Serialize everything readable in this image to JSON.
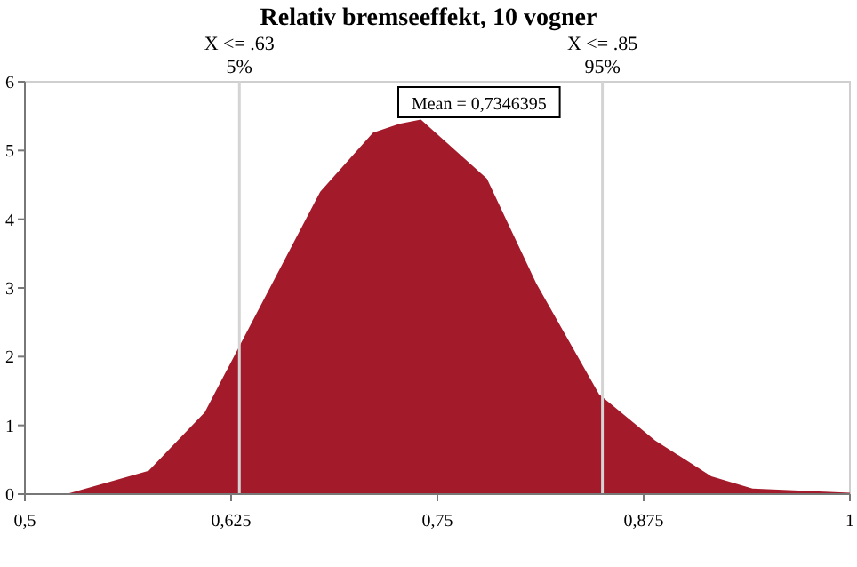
{
  "chart_data": {
    "type": "area",
    "title": "Relativ bremseeffekt, 10 vogner",
    "x": [
      0.5,
      0.525,
      0.575,
      0.609,
      0.626,
      0.679,
      0.711,
      0.727,
      0.74,
      0.78,
      0.81,
      0.848,
      0.882,
      0.916,
      0.941,
      1.0
    ],
    "series": [
      {
        "color": "#a31b2b",
        "values": [
          0,
          0,
          0.34,
          1.19,
          1.97,
          4.4,
          5.26,
          5.39,
          5.45,
          4.59,
          3.06,
          1.45,
          0.78,
          0.26,
          0.08,
          0.02
        ]
      }
    ],
    "xlim": [
      0.5,
      1
    ],
    "ylim": [
      0,
      6
    ],
    "xticks": [
      {
        "value": 0.5,
        "label": "0,5"
      },
      {
        "value": 0.625,
        "label": "0,625"
      },
      {
        "value": 0.75,
        "label": "0,75"
      },
      {
        "value": 0.875,
        "label": "0,875"
      },
      1
    ],
    "yticks": [
      0,
      1,
      2,
      3,
      4,
      5,
      6
    ],
    "ref_lines": [
      {
        "axis": "x",
        "value": 0.63,
        "label": "X <= .63\n5%",
        "color": "#d4d4d4"
      },
      {
        "axis": "x",
        "value": 0.85,
        "label": "X <= .85\n95%",
        "color": "#d4d4d4"
      }
    ],
    "annotations": [
      "Mean = 0,7346395"
    ]
  }
}
